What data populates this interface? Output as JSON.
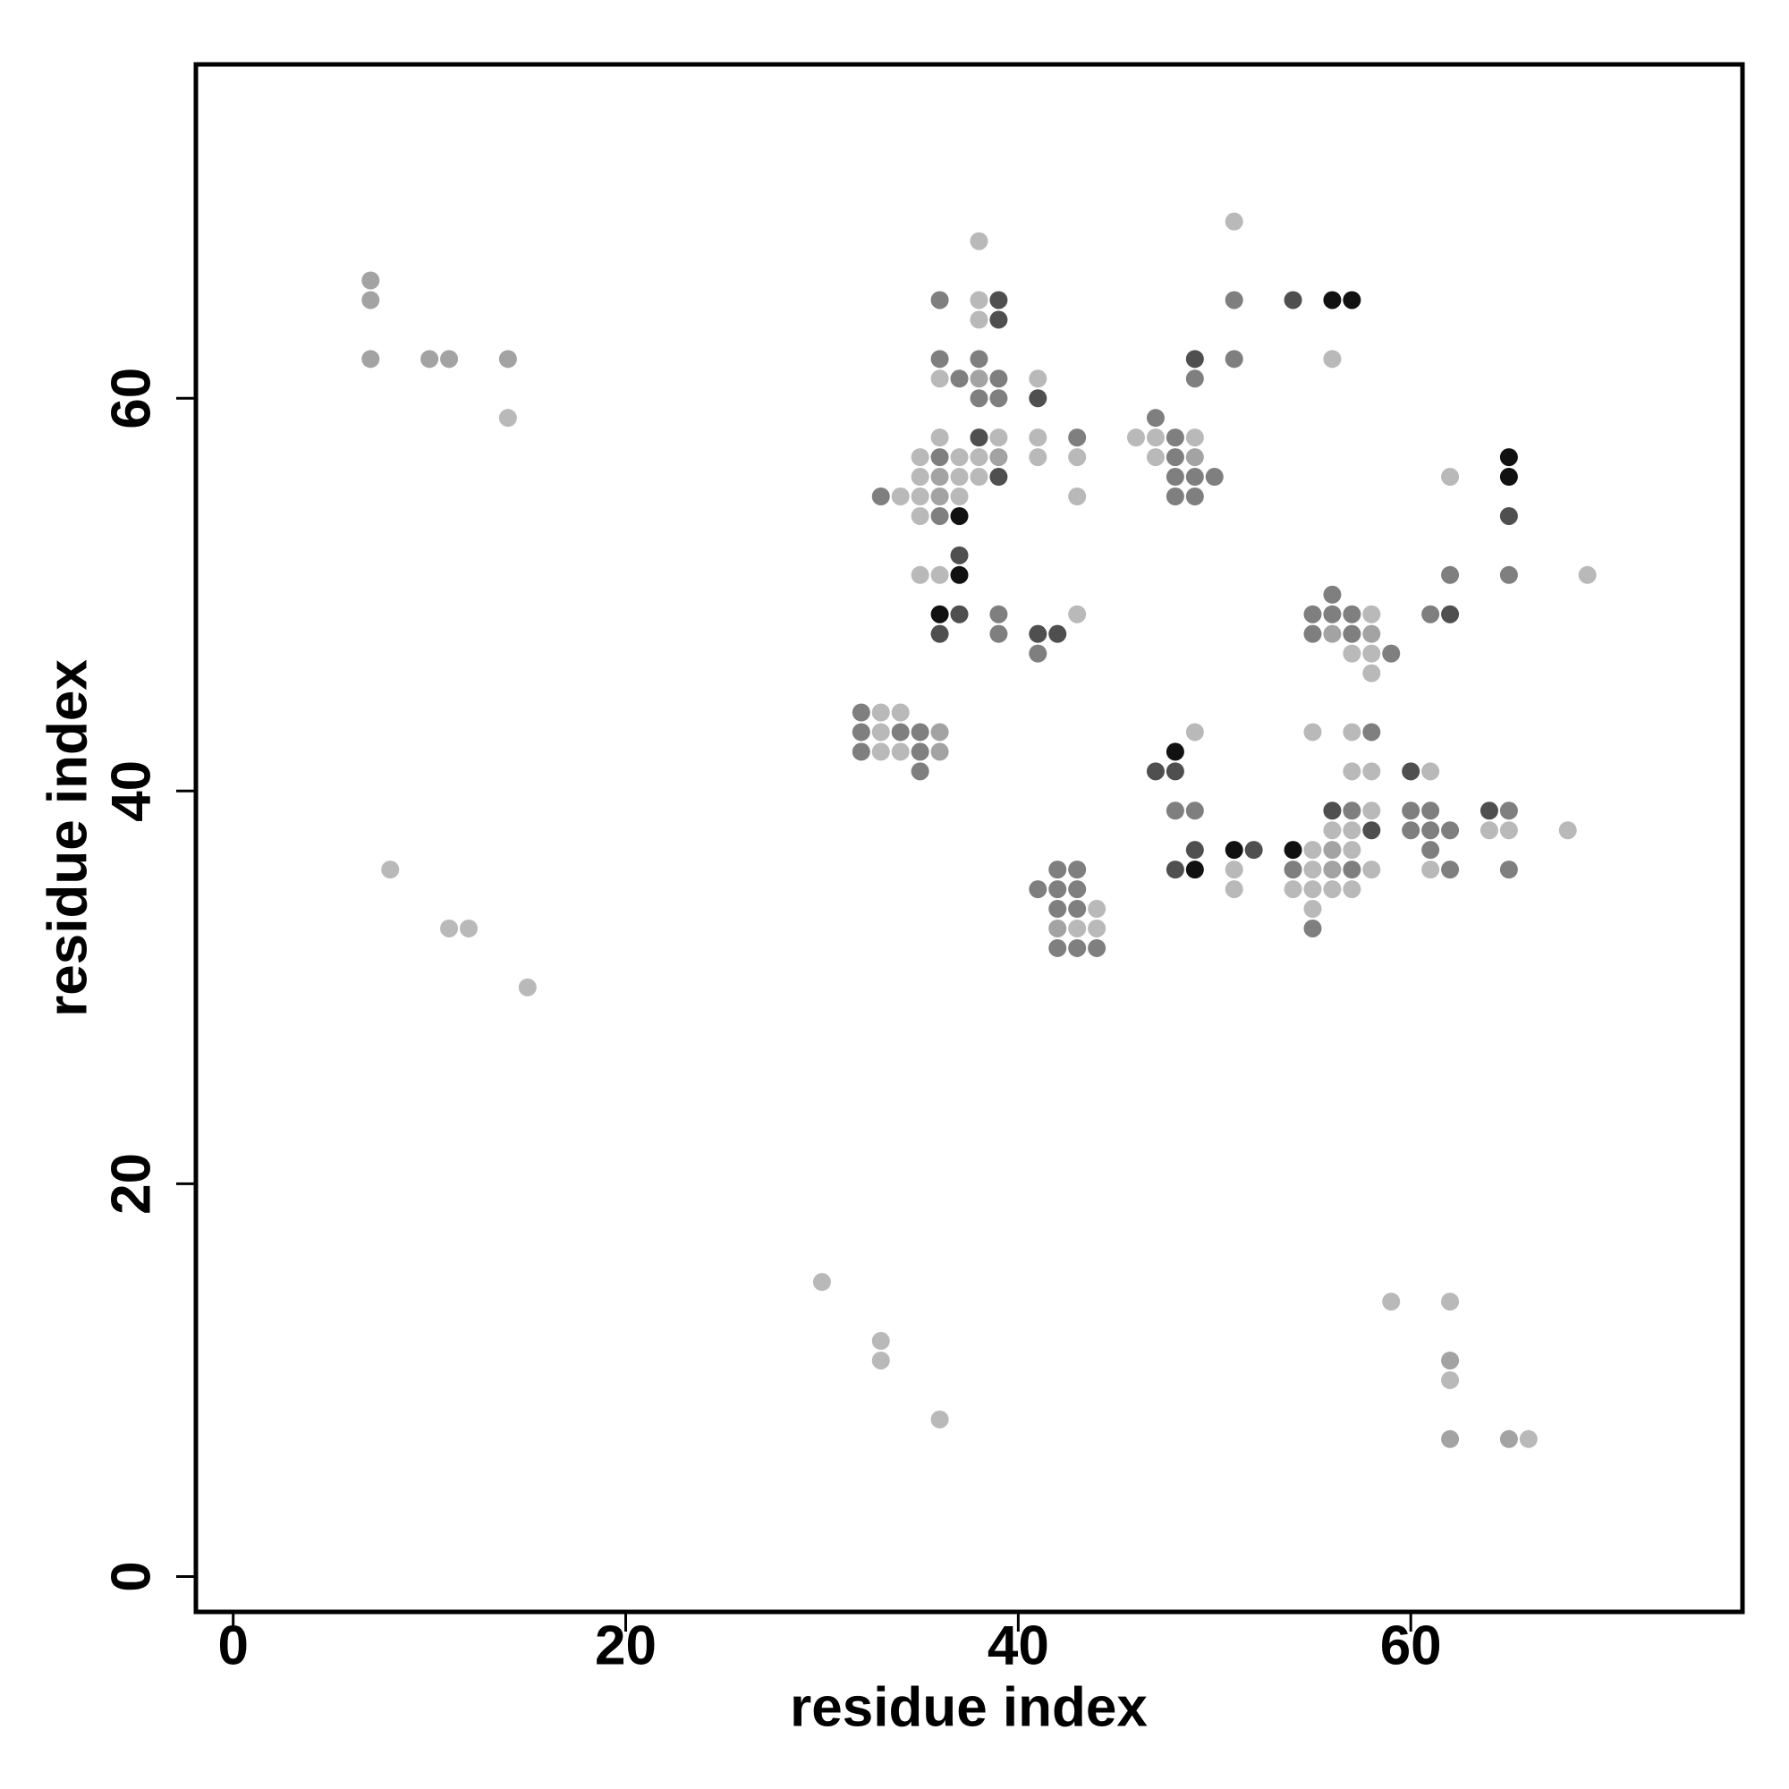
{
  "chart_data": {
    "type": "scatter",
    "xlabel": "residue index",
    "ylabel": "residue index",
    "xlim": [
      -1.9,
      76.9
    ],
    "ylim": [
      -1.8,
      77
    ],
    "xticks": [
      0,
      20,
      40,
      60
    ],
    "yticks": [
      0,
      20,
      40,
      60
    ],
    "x": [
      7,
      7,
      7,
      10,
      11,
      14,
      14,
      8,
      11,
      12,
      15,
      30,
      33,
      33,
      36,
      59,
      62,
      62,
      62,
      62,
      65,
      66,
      32,
      33,
      34,
      32,
      33,
      34,
      35,
      36,
      32,
      33,
      34,
      35,
      36,
      35,
      38,
      36,
      38,
      39,
      38,
      39,
      36,
      38,
      36,
      37,
      38,
      39,
      38,
      39,
      36,
      38,
      39,
      35,
      36,
      37,
      38,
      39,
      35,
      36,
      37,
      38,
      39,
      33,
      34,
      35,
      36,
      37,
      35,
      36,
      37,
      37,
      35,
      36,
      37,
      36,
      37,
      39,
      36,
      39,
      41,
      41,
      41,
      43,
      41,
      43,
      43,
      43,
      41,
      42,
      41,
      41,
      42,
      43,
      42,
      43,
      42,
      43,
      44,
      42,
      43,
      44,
      42,
      43,
      44,
      47,
      46,
      47,
      48,
      49,
      47,
      48,
      49,
      48,
      49,
      50,
      48,
      49,
      49,
      49,
      51,
      51,
      51,
      54,
      56,
      57,
      56,
      49,
      48,
      47,
      48,
      48,
      49,
      49,
      51,
      52,
      48,
      49,
      51,
      51,
      56,
      55,
      56,
      57,
      58,
      55,
      56,
      57,
      58,
      57,
      58,
      59,
      58,
      55,
      57,
      58,
      57,
      58,
      56,
      57,
      58,
      56,
      57,
      58,
      54,
      55,
      56,
      57,
      54,
      55,
      56,
      57,
      58,
      54,
      55,
      56,
      57,
      55,
      55,
      62,
      65,
      65,
      65,
      65,
      62,
      61,
      62,
      69,
      60,
      61,
      60,
      61,
      64,
      65,
      60,
      61,
      62,
      64,
      65,
      68,
      61,
      61,
      62,
      65
    ],
    "values": [
      66,
      65,
      62,
      62,
      62,
      62,
      59,
      36,
      33,
      33,
      30,
      15,
      12,
      11,
      8,
      14,
      14,
      11,
      10,
      7,
      7,
      7,
      44,
      44,
      44,
      43,
      43,
      43,
      43,
      43,
      42,
      42,
      42,
      42,
      42,
      41,
      68,
      65,
      65,
      65,
      64,
      64,
      62,
      62,
      61,
      61,
      61,
      61,
      60,
      60,
      58,
      58,
      58,
      57,
      57,
      57,
      57,
      57,
      56,
      56,
      56,
      56,
      56,
      55,
      55,
      55,
      55,
      55,
      54,
      54,
      54,
      52,
      51,
      51,
      51,
      49,
      49,
      49,
      48,
      48,
      61,
      60,
      58,
      58,
      57,
      57,
      55,
      49,
      48,
      48,
      47,
      35,
      36,
      36,
      35,
      35,
      34,
      34,
      34,
      33,
      33,
      33,
      32,
      32,
      32,
      59,
      58,
      58,
      58,
      58,
      57,
      57,
      57,
      56,
      56,
      56,
      55,
      55,
      62,
      61,
      69,
      65,
      62,
      65,
      65,
      65,
      62,
      43,
      42,
      41,
      41,
      39,
      39,
      37,
      37,
      37,
      36,
      36,
      36,
      35,
      50,
      49,
      49,
      49,
      49,
      48,
      48,
      48,
      48,
      47,
      47,
      47,
      46,
      43,
      43,
      43,
      41,
      41,
      39,
      39,
      39,
      38,
      38,
      38,
      37,
      37,
      37,
      37,
      36,
      36,
      36,
      36,
      36,
      35,
      35,
      35,
      35,
      34,
      33,
      56,
      57,
      56,
      54,
      51,
      51,
      49,
      49,
      51,
      41,
      41,
      39,
      39,
      39,
      39,
      38,
      38,
      38,
      38,
      38,
      38,
      37,
      36,
      36,
      36
    ],
    "colors": [
      "#a3a3a3",
      "#a3a3a3",
      "#a3a3a3",
      "#a3a3a3",
      "#a3a3a3",
      "#a3a3a3",
      "#b9b9b9",
      "#b9b9b9",
      "#b9b9b9",
      "#b9b9b9",
      "#b9b9b9",
      "#b9b9b9",
      "#b9b9b9",
      "#b9b9b9",
      "#b9b9b9",
      "#b9b9b9",
      "#b9b9b9",
      "#a3a3a3",
      "#b9b9b9",
      "#a3a3a3",
      "#a3a3a3",
      "#b9b9b9",
      "#7f7f7f",
      "#b9b9b9",
      "#b9b9b9",
      "#7f7f7f",
      "#b9b9b9",
      "#7f7f7f",
      "#7f7f7f",
      "#a3a3a3",
      "#7f7f7f",
      "#b9b9b9",
      "#b9b9b9",
      "#7f7f7f",
      "#a3a3a3",
      "#7f7f7f",
      "#b9b9b9",
      "#7f7f7f",
      "#b9b9b9",
      "#4f4f4f",
      "#b9b9b9",
      "#4f4f4f",
      "#7f7f7f",
      "#7f7f7f",
      "#b9b9b9",
      "#7f7f7f",
      "#a3a3a3",
      "#7f7f7f",
      "#7f7f7f",
      "#7f7f7f",
      "#b9b9b9",
      "#4f4f4f",
      "#b9b9b9",
      "#b9b9b9",
      "#7f7f7f",
      "#b9b9b9",
      "#b9b9b9",
      "#a3a3a3",
      "#b9b9b9",
      "#a3a3a3",
      "#b9b9b9",
      "#b9b9b9",
      "#4f4f4f",
      "#7f7f7f",
      "#b9b9b9",
      "#b9b9b9",
      "#a3a3a3",
      "#b9b9b9",
      "#b9b9b9",
      "#7f7f7f",
      "#111111",
      "#4f4f4f",
      "#b9b9b9",
      "#b9b9b9",
      "#111111",
      "#111111",
      "#4f4f4f",
      "#7f7f7f",
      "#4f4f4f",
      "#7f7f7f",
      "#b9b9b9",
      "#4f4f4f",
      "#b9b9b9",
      "#7f7f7f",
      "#b9b9b9",
      "#b9b9b9",
      "#b9b9b9",
      "#b9b9b9",
      "#4f4f4f",
      "#4f4f4f",
      "#7f7f7f",
      "#7f7f7f",
      "#7f7f7f",
      "#7f7f7f",
      "#7f7f7f",
      "#7f7f7f",
      "#7f7f7f",
      "#7f7f7f",
      "#b9b9b9",
      "#a3a3a3",
      "#b9b9b9",
      "#b9b9b9",
      "#7f7f7f",
      "#7f7f7f",
      "#7f7f7f",
      "#7f7f7f",
      "#b9b9b9",
      "#b9b9b9",
      "#7f7f7f",
      "#b9b9b9",
      "#b9b9b9",
      "#7f7f7f",
      "#a3a3a3",
      "#7f7f7f",
      "#7f7f7f",
      "#7f7f7f",
      "#7f7f7f",
      "#7f7f7f",
      "#4f4f4f",
      "#7f7f7f",
      "#b9b9b9",
      "#7f7f7f",
      "#7f7f7f",
      "#4f4f4f",
      "#111111",
      "#111111",
      "#b9b9b9",
      "#b9b9b9",
      "#111111",
      "#4f4f4f",
      "#4f4f4f",
      "#7f7f7f",
      "#7f7f7f",
      "#4f4f4f",
      "#111111",
      "#4f4f4f",
      "#4f4f4f",
      "#111111",
      "#b9b9b9",
      "#b9b9b9",
      "#7f7f7f",
      "#7f7f7f",
      "#7f7f7f",
      "#7f7f7f",
      "#b9b9b9",
      "#7f7f7f",
      "#a3a3a3",
      "#7f7f7f",
      "#a3a3a3",
      "#b9b9b9",
      "#b9b9b9",
      "#7f7f7f",
      "#b9b9b9",
      "#b9b9b9",
      "#b9b9b9",
      "#7f7f7f",
      "#b9b9b9",
      "#b9b9b9",
      "#4f4f4f",
      "#7f7f7f",
      "#b9b9b9",
      "#b9b9b9",
      "#b9b9b9",
      "#4f4f4f",
      "#111111",
      "#b9b9b9",
      "#a3a3a3",
      "#b9b9b9",
      "#7f7f7f",
      "#b9b9b9",
      "#a3a3a3",
      "#7f7f7f",
      "#b9b9b9",
      "#b9b9b9",
      "#b9b9b9",
      "#b9b9b9",
      "#b9b9b9",
      "#b9b9b9",
      "#7f7f7f",
      "#b9b9b9",
      "#111111",
      "#111111",
      "#4f4f4f",
      "#7f7f7f",
      "#7f7f7f",
      "#7f7f7f",
      "#4f4f4f",
      "#b9b9b9",
      "#4f4f4f",
      "#b9b9b9",
      "#7f7f7f",
      "#7f7f7f",
      "#4f4f4f",
      "#7f7f7f",
      "#7f7f7f",
      "#7f7f7f",
      "#7f7f7f",
      "#b9b9b9",
      "#b9b9b9",
      "#b9b9b9",
      "#7f7f7f",
      "#b9b9b9",
      "#7f7f7f",
      "#7f7f7f"
    ]
  }
}
